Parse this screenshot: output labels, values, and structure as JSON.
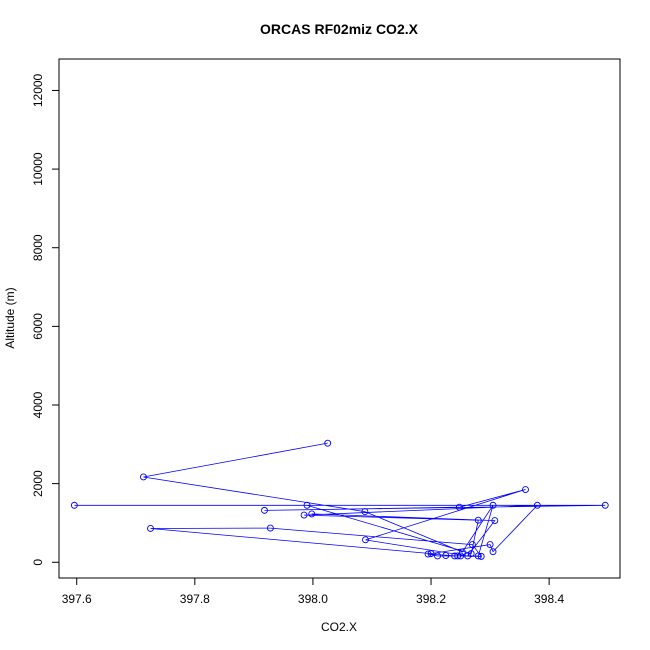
{
  "chart_data": {
    "type": "line",
    "title": "ORCAS RF02miz CO2.X",
    "xlabel": "CO2.X",
    "ylabel": "Altitude (m)",
    "xlim": [
      397.57,
      398.52
    ],
    "ylim": [
      -400,
      12800
    ],
    "xticks": [
      "397.6",
      "397.8",
      "398.0",
      "398.2",
      "398.4"
    ],
    "xtick_values": [
      397.6,
      397.8,
      398.0,
      398.2,
      398.4
    ],
    "yticks": [
      "0",
      "2000",
      "4000",
      "6000",
      "8000",
      "10000",
      "12000"
    ],
    "ytick_values": [
      0,
      2000,
      4000,
      6000,
      8000,
      10000,
      12000
    ],
    "grid": false,
    "marker": "open-circle",
    "color": "#0000ff",
    "series": [
      {
        "x": [
          398.025,
          397.713,
          398.088,
          398.253,
          398.305,
          398.28,
          398.225,
          398.245,
          398.195,
          398.211,
          398.24,
          398.25,
          398.285,
          398.27,
          397.928,
          397.725,
          398.2,
          398.3,
          398.305,
          398.38,
          397.985,
          398.28,
          398.268,
          397.99,
          397.596,
          398.495,
          397.918,
          398.248,
          398.36,
          398.089,
          398.262,
          398.308,
          397.998
        ],
        "y": [
          3030,
          2170,
          1290,
          260,
          1450,
          160,
          170,
          160,
          210,
          160,
          160,
          160,
          150,
          450,
          870,
          860,
          220,
          450,
          270,
          1450,
          1200,
          1070,
          220,
          1450,
          1450,
          1450,
          1320,
          1400,
          1850,
          570,
          160,
          1060,
          1230
        ]
      }
    ]
  }
}
